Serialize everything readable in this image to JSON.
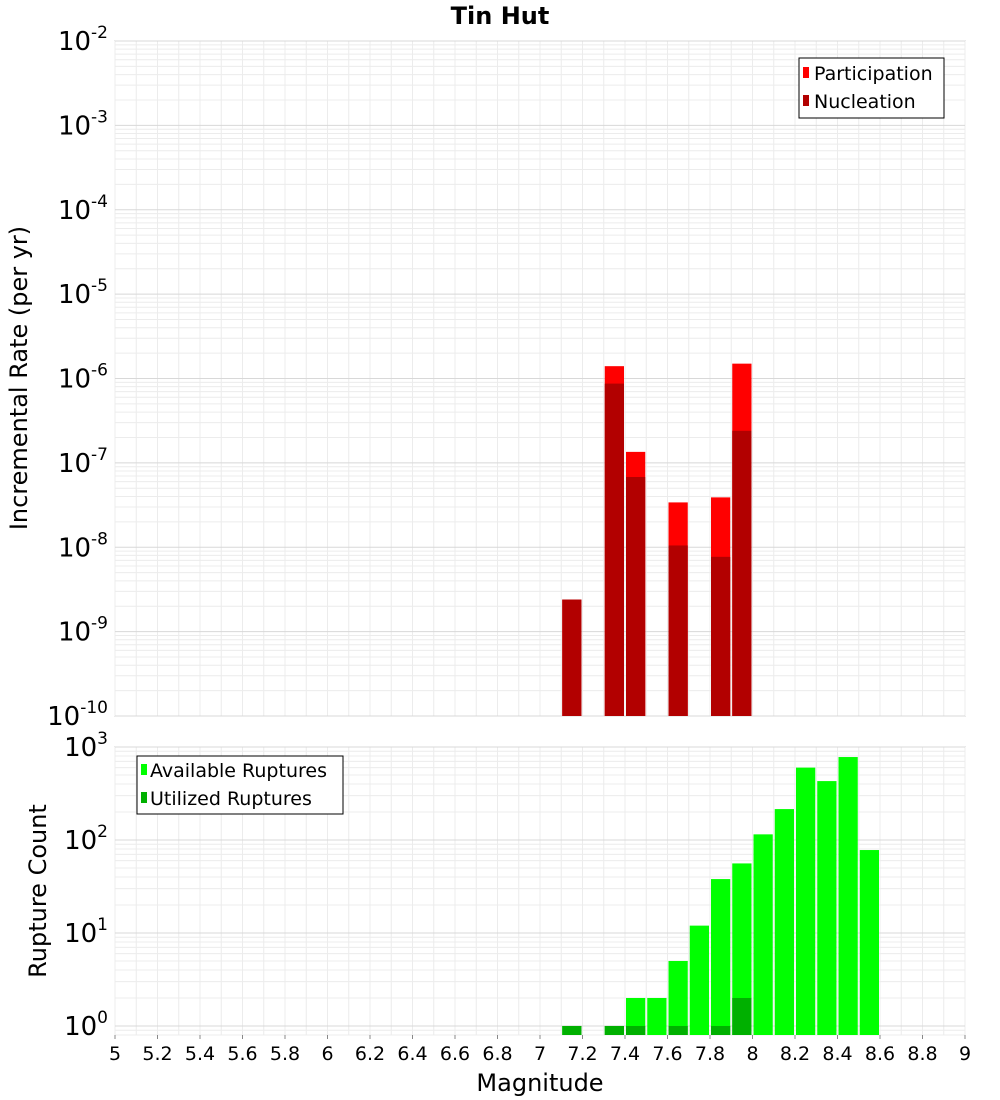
{
  "title": "Tin Hut",
  "x_axis_label": "Magnitude",
  "chart_data": [
    {
      "type": "bar",
      "ylabel": "Incremental Rate (per yr)",
      "xlim": [
        5,
        9
      ],
      "ylim": [
        1e-10,
        0.01
      ],
      "log_y": true,
      "grid": true,
      "legend_position": "top-right",
      "bin_width": 0.1,
      "series": [
        {
          "name": "Participation",
          "color": "#ff0000",
          "x": [
            7.15,
            7.35,
            7.45,
            7.65,
            7.85,
            7.95
          ],
          "values": [
            2.4e-09,
            1.4e-06,
            1.35e-07,
            3.4e-08,
            3.9e-08,
            1.5e-06
          ]
        },
        {
          "name": "Nucleation",
          "color": "#b20000",
          "x": [
            7.15,
            7.35,
            7.45,
            7.65,
            7.85,
            7.95
          ],
          "values": [
            2.4e-09,
            8.7e-07,
            6.8e-08,
            1.05e-08,
            7.7e-09,
            2.4e-07
          ]
        }
      ]
    },
    {
      "type": "bar",
      "ylabel": "Rupture Count",
      "xlim": [
        5,
        9
      ],
      "ylim": [
        0.8,
        1000
      ],
      "log_y": true,
      "grid": true,
      "legend_position": "top-left",
      "bin_width": 0.1,
      "series": [
        {
          "name": "Available Ruptures",
          "color": "#00ff00",
          "x": [
            7.15,
            7.35,
            7.45,
            7.55,
            7.65,
            7.75,
            7.85,
            7.95,
            8.05,
            8.15,
            8.25,
            8.35,
            8.45,
            8.55
          ],
          "values": [
            1,
            1,
            2,
            2,
            5,
            12,
            38,
            56,
            115,
            215,
            600,
            430,
            780,
            78
          ]
        },
        {
          "name": "Utilized Ruptures",
          "color": "#00b000",
          "x": [
            7.15,
            7.35,
            7.45,
            7.65,
            7.85,
            7.95
          ],
          "values": [
            1,
            1,
            1,
            1,
            1,
            2
          ]
        }
      ]
    }
  ],
  "x_ticks": [
    "5",
    "5.2",
    "5.4",
    "5.6",
    "5.8",
    "6",
    "6.2",
    "6.4",
    "6.6",
    "6.8",
    "7",
    "7.2",
    "7.4",
    "7.6",
    "7.8",
    "8",
    "8.2",
    "8.4",
    "8.6",
    "8.8",
    "9"
  ],
  "top_y_ticks": [
    {
      "base": "10",
      "exp": "-2"
    },
    {
      "base": "10",
      "exp": "-3"
    },
    {
      "base": "10",
      "exp": "-4"
    },
    {
      "base": "10",
      "exp": "-5"
    },
    {
      "base": "10",
      "exp": "-6"
    },
    {
      "base": "10",
      "exp": "-7"
    },
    {
      "base": "10",
      "exp": "-8"
    },
    {
      "base": "10",
      "exp": "-9"
    },
    {
      "base": "10",
      "exp": "-10"
    }
  ],
  "bottom_y_ticks": [
    {
      "base": "10",
      "exp": "3"
    },
    {
      "base": "10",
      "exp": "2"
    },
    {
      "base": "10",
      "exp": "1"
    },
    {
      "base": "10",
      "exp": "0"
    }
  ]
}
